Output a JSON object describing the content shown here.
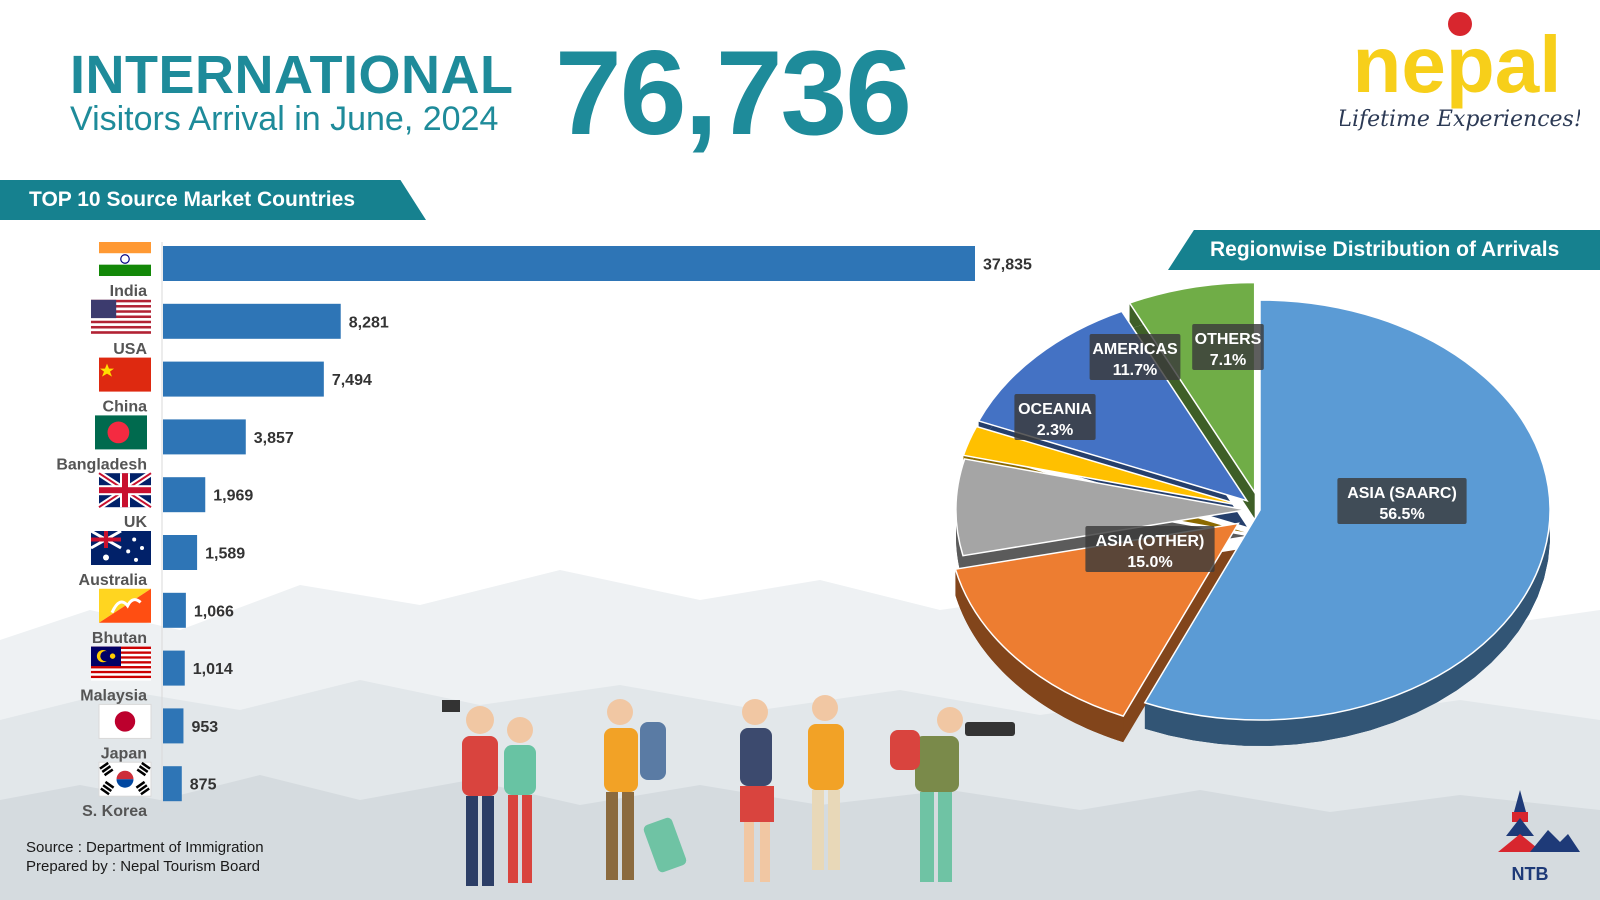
{
  "header": {
    "international": "INTERNATIONAL",
    "subtitle": "Visitors Arrival in June, 2024",
    "total": "76,736"
  },
  "logo": {
    "brand": "nepal",
    "tagline": "Lifetime Experiences!",
    "colors": {
      "brand": "#f7cf1a",
      "dot": "#d8262e",
      "tagline": "#2c3a55"
    }
  },
  "sections": {
    "left_band": "TOP 10 Source Market Countries",
    "right_band": "Regionwise Distribution of Arrivals"
  },
  "footer": {
    "source": "Source : Department of Immigration",
    "prepared": "Prepared by : Nepal Tourism Board",
    "ntb_logo": "NTB"
  },
  "colors": {
    "accent": "#1e8b9a",
    "bar": "#2e75b6"
  },
  "chart_data": [
    {
      "type": "bar",
      "orientation": "horizontal",
      "title": "TOP 10 Source Market Countries",
      "categories": [
        "India",
        "USA",
        "China",
        "Bangladesh",
        "UK",
        "Australia",
        "Bhutan",
        "Malaysia",
        "Japan",
        "S. Korea"
      ],
      "values": [
        37835,
        8281,
        7494,
        3857,
        1969,
        1589,
        1066,
        1014,
        953,
        875
      ],
      "value_labels": [
        "37,835",
        "8,281",
        "7,494",
        "3,857",
        "1,969",
        "1,589",
        "1,066",
        "1,014",
        "953",
        "875"
      ],
      "flags": [
        "india-flag-icon",
        "usa-flag-icon",
        "china-flag-icon",
        "bangladesh-flag-icon",
        "uk-flag-icon",
        "australia-flag-icon",
        "bhutan-flag-icon",
        "malaysia-flag-icon",
        "japan-flag-icon",
        "south-korea-flag-icon"
      ],
      "grid": false
    },
    {
      "type": "pie",
      "title": "Regionwise Distribution of Arrivals",
      "slices": [
        {
          "name": "ASIA (SAARC)",
          "value": 56.5,
          "label": "56.5%",
          "color": "#5b9bd5"
        },
        {
          "name": "ASIA (OTHER)",
          "value": 15.0,
          "label": "15.0%",
          "color": "#ed7d31"
        },
        {
          "name": "",
          "value": 7.4,
          "label": "",
          "color": "#a5a5a5"
        },
        {
          "name": "OCEANIA",
          "value": 2.3,
          "label": "2.3%",
          "color": "#ffc000"
        },
        {
          "name": "AMERICAS",
          "value": 11.7,
          "label": "11.7%",
          "color": "#4472c4"
        },
        {
          "name": "OTHERS",
          "value": 7.1,
          "label": "7.1%",
          "color": "#70ad47"
        }
      ]
    }
  ]
}
